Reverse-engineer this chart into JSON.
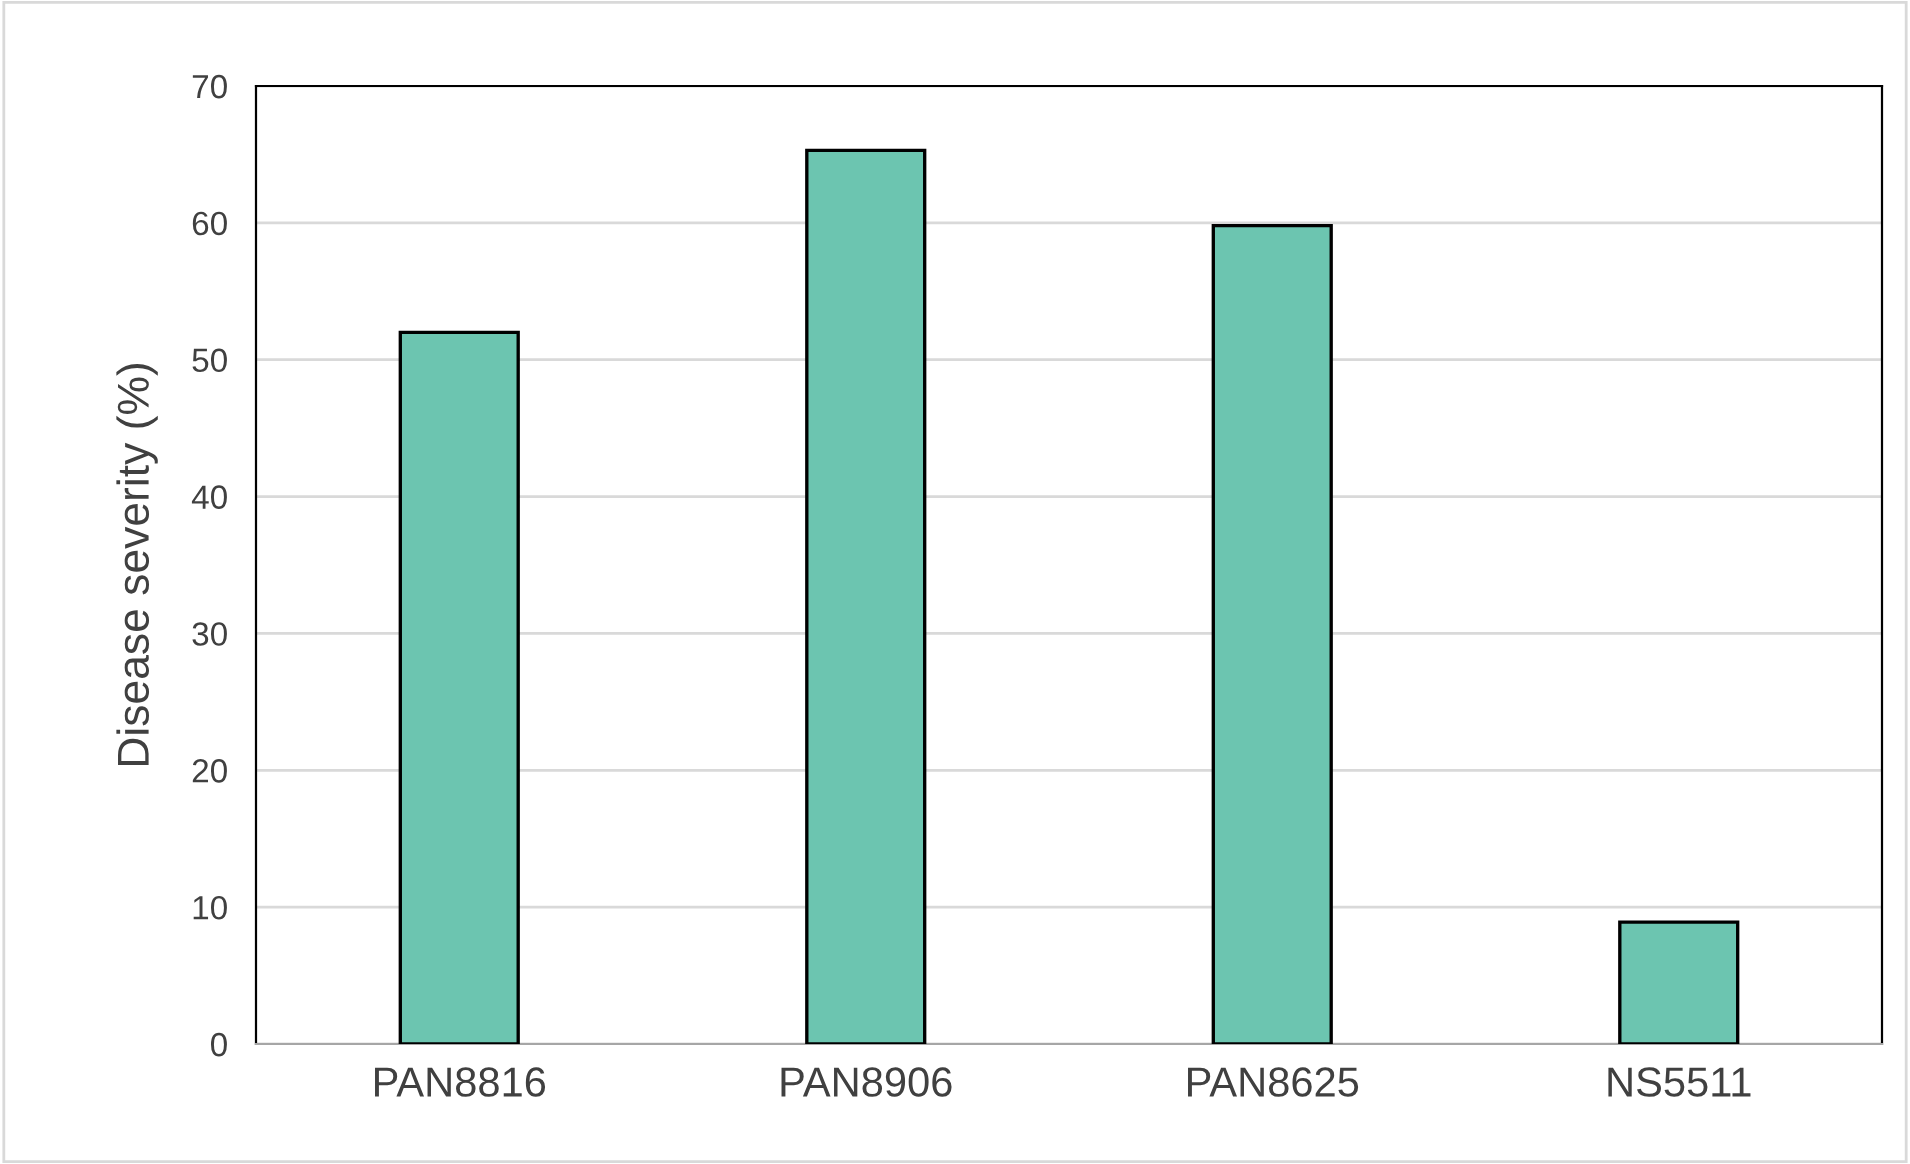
{
  "chart_data": {
    "type": "bar",
    "ylabel": "Disease severity (%)",
    "categories": [
      "PAN8816",
      "PAN8906",
      "PAN8625",
      "NS5511"
    ],
    "values": [
      52,
      65.3,
      59.8,
      8.9
    ],
    "color": "#6cc5b0",
    "ylim": [
      0,
      70
    ],
    "yticks": [
      0,
      10,
      20,
      30,
      40,
      50,
      60,
      70
    ],
    "grid": "y",
    "legend": false
  }
}
